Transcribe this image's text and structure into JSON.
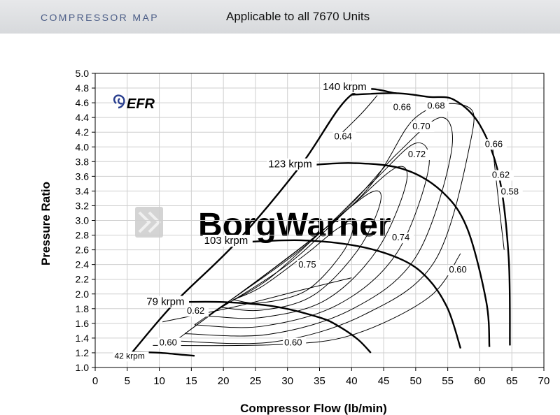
{
  "header": {
    "title": "COMPRESSOR MAP",
    "subtitle": "Applicable to all 7670 Units"
  },
  "logo": {
    "text": "EFR",
    "color": "#2a3f8f"
  },
  "watermark": {
    "text": "BorgWarner",
    "color": "#cfcfcf"
  },
  "chart_data": {
    "type": "line",
    "title": "",
    "xlabel": "Compressor Flow (lb/min)",
    "ylabel": "Pressure Ratio",
    "xlim": [
      0,
      70
    ],
    "ylim": [
      1.0,
      5.0
    ],
    "x_ticks": [
      "0",
      "5",
      "10",
      "15",
      "20",
      "25",
      "30",
      "35",
      "40",
      "45",
      "50",
      "55",
      "60",
      "65",
      "70"
    ],
    "y_ticks": [
      "1.0",
      "1.2",
      "1.4",
      "1.6",
      "1.8",
      "2.0",
      "2.2",
      "2.4",
      "2.6",
      "2.8",
      "3.0",
      "3.2",
      "3.4",
      "3.6",
      "3.8",
      "4.0",
      "4.2",
      "4.4",
      "4.6",
      "4.8",
      "5.0"
    ],
    "grid": true,
    "surge_line": {
      "x": [
        5.8,
        12.5,
        22,
        32,
        40,
        47
      ],
      "y": [
        1.21,
        1.89,
        2.7,
        3.74,
        4.71,
        4.73
      ]
    },
    "speed_lines": [
      {
        "label": "42 krpm",
        "x": [
          5.8,
          10,
          14,
          15.5
        ],
        "y": [
          1.21,
          1.2,
          1.17,
          1.16
        ]
      },
      {
        "label": "79 krpm",
        "x": [
          12.5,
          20,
          28,
          35,
          38,
          41,
          43
        ],
        "y": [
          1.89,
          1.89,
          1.83,
          1.68,
          1.56,
          1.38,
          1.2
        ]
      },
      {
        "label": "103 krpm",
        "x": [
          22,
          32,
          41,
          48,
          52,
          55,
          57
        ],
        "y": [
          2.7,
          2.73,
          2.65,
          2.46,
          2.2,
          1.8,
          1.26
        ]
      },
      {
        "label": "123 krpm",
        "x": [
          32,
          40,
          48,
          54,
          58,
          61,
          61.5
        ],
        "y": [
          3.74,
          3.78,
          3.7,
          3.4,
          2.9,
          1.9,
          1.28
        ]
      },
      {
        "label": "140 krpm",
        "x": [
          40,
          47,
          52,
          56,
          60,
          63,
          64.5,
          64.7
        ],
        "y": [
          4.71,
          4.73,
          4.68,
          4.64,
          4.3,
          3.6,
          2.5,
          1.3
        ]
      }
    ],
    "efficiency_islands": [
      {
        "label": "0.75",
        "x": [
          21.5,
          26,
          33,
          38.5,
          40.2,
          38,
          33,
          26,
          21.5
        ],
        "y": [
          1.92,
          1.88,
          2.05,
          2.55,
          2.92,
          2.9,
          2.55,
          2.1,
          1.92
        ]
      },
      {
        "label": "0.74",
        "x": [
          19.5,
          26,
          34,
          41,
          44.5,
          43,
          36,
          27,
          19.5
        ],
        "y": [
          1.82,
          1.78,
          1.98,
          2.6,
          3.25,
          3.38,
          2.9,
          2.2,
          1.82
        ]
      },
      {
        "label": "0.72",
        "x": [
          17.5,
          26,
          36,
          44,
          48.5,
          47,
          40,
          30,
          17.5
        ],
        "y": [
          1.7,
          1.68,
          1.92,
          2.6,
          3.5,
          3.72,
          3.2,
          2.4,
          1.7
        ]
      },
      {
        "label": "0.70",
        "x": [
          15.5,
          26,
          38,
          47,
          52,
          50,
          43,
          32,
          15.5
        ],
        "y": [
          1.58,
          1.56,
          1.86,
          2.55,
          3.7,
          4.05,
          3.5,
          2.6,
          1.58
        ]
      },
      {
        "label": "0.68",
        "x": [
          14,
          27,
          40,
          50,
          55.5,
          54,
          47,
          36,
          14
        ],
        "y": [
          1.46,
          1.45,
          1.79,
          2.5,
          3.9,
          4.4,
          3.9,
          2.9,
          1.46
        ]
      },
      {
        "label": "0.66",
        "x": [
          12.5,
          28,
          42,
          53,
          58.5,
          58,
          50,
          40,
          12.5
        ],
        "y": [
          1.36,
          1.35,
          1.72,
          2.45,
          4.05,
          4.55,
          4.4,
          3.2,
          1.36
        ]
      },
      {
        "label": "0.64",
        "x": [
          38,
          41.5,
          44
        ],
        "y": [
          4.15,
          4.45,
          4.7
        ]
      },
      {
        "label": "0.62",
        "x": [
          10.5,
          22,
          32,
          40
        ],
        "y": [
          1.62,
          1.83,
          2.05,
          2.22
        ]
      },
      {
        "label": "0.60",
        "x": [
          9,
          28,
          40,
          52,
          57
        ],
        "y": [
          1.3,
          1.31,
          1.44,
          1.95,
          2.55
        ]
      },
      {
        "label": "0.58",
        "x": [
          62,
          63,
          63.8
        ],
        "y": [
          4.0,
          3.2,
          2.6
        ]
      }
    ],
    "annotations": [
      {
        "text": "140 krpm",
        "x": 35.5,
        "y": 4.77
      },
      {
        "text": "123 krpm",
        "x": 27,
        "y": 3.72
      },
      {
        "text": "103 krpm",
        "x": 17,
        "y": 2.68
      },
      {
        "text": "79 krpm",
        "x": 8,
        "y": 1.85
      },
      {
        "text": "42 krpm",
        "x": 3,
        "y": 1.12
      },
      {
        "text": "0.66",
        "x": 46.5,
        "y": 4.5
      },
      {
        "text": "0.68",
        "x": 51.8,
        "y": 4.52
      },
      {
        "text": "0.70",
        "x": 49.5,
        "y": 4.24
      },
      {
        "text": "0.64",
        "x": 37.3,
        "y": 4.1
      },
      {
        "text": "0.72",
        "x": 48.8,
        "y": 3.86
      },
      {
        "text": "0.66",
        "x": 60.8,
        "y": 4.0
      },
      {
        "text": "0.62",
        "x": 61.9,
        "y": 3.58
      },
      {
        "text": "0.58",
        "x": 63.3,
        "y": 3.35
      },
      {
        "text": "0.74",
        "x": 46.3,
        "y": 2.73
      },
      {
        "text": "0.75",
        "x": 31.7,
        "y": 2.36
      },
      {
        "text": "0.60",
        "x": 55.2,
        "y": 2.29
      },
      {
        "text": "0.62",
        "x": 14.3,
        "y": 1.73
      },
      {
        "text": "0.60",
        "x": 10.0,
        "y": 1.3
      },
      {
        "text": "0.60",
        "x": 29.5,
        "y": 1.3
      }
    ]
  }
}
